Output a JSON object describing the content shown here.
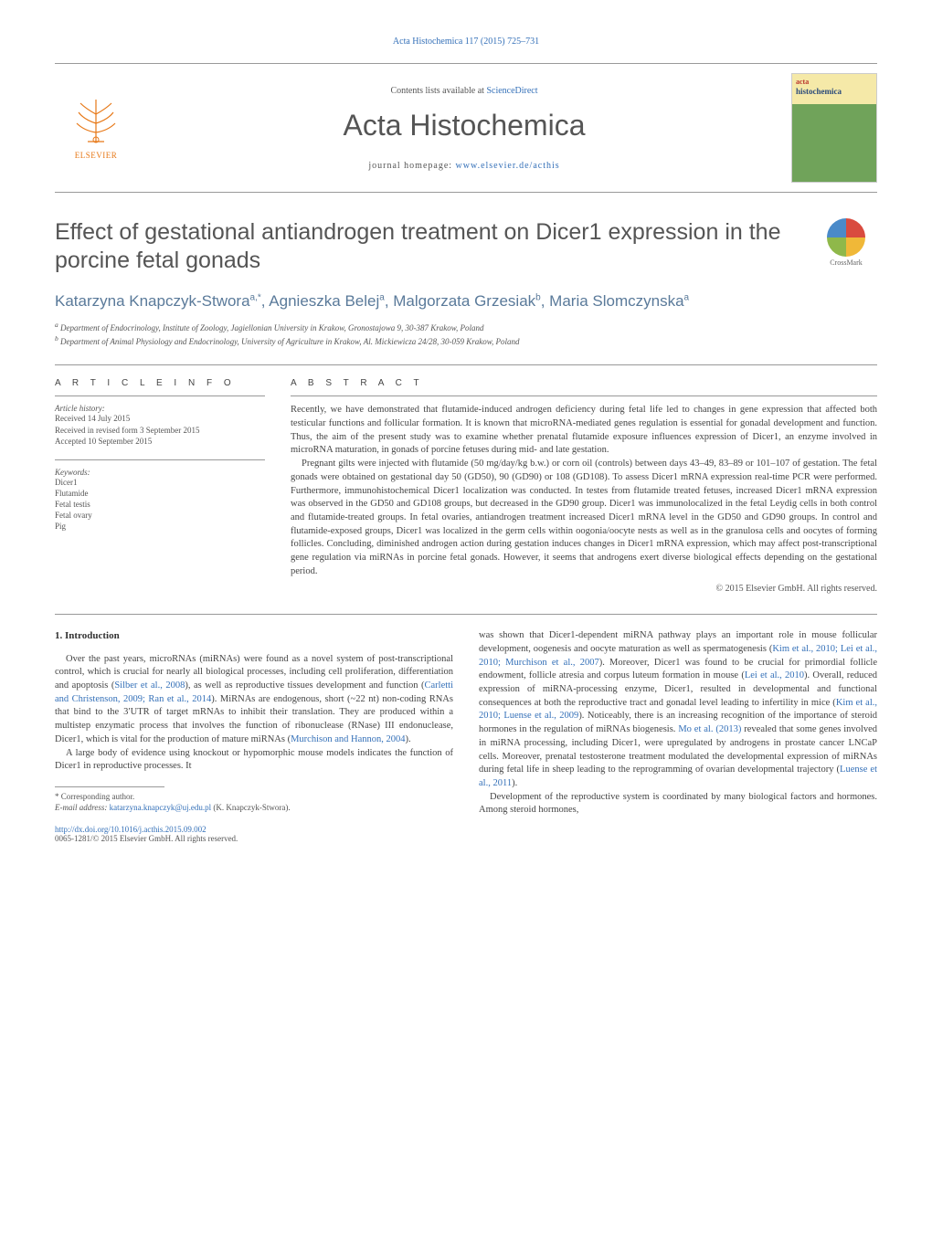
{
  "header_citation": "Acta Histochemica 117 (2015) 725–731",
  "masthead": {
    "elsevier_label": "ELSEVIER",
    "contents_prefix": "Contents lists available at ",
    "contents_link": "ScienceDirect",
    "journal_name": "Acta Histochemica",
    "homepage_prefix": "journal homepage: ",
    "homepage_url": "www.elsevier.de/acthis",
    "cover_small": "acta",
    "cover_big": "histochemica"
  },
  "title": "Effect of gestational antiandrogen treatment on Dicer1 expression in the porcine fetal gonads",
  "crossmark_label": "CrossMark",
  "authors_html": "Katarzyna Knapczyk-Stwora|a,*|, Agnieszka Belej|a|, Malgorzata Grzesiak|b|, Maria Slomczynska|a|",
  "affiliations": {
    "a": "Department of Endocrinology, Institute of Zoology, Jagiellonian University in Krakow, Gronostajowa 9, 30-387 Krakow, Poland",
    "b": "Department of Animal Physiology and Endocrinology, University of Agriculture in Krakow, Al. Mickiewicza 24/28, 30-059 Krakow, Poland"
  },
  "article_info": {
    "heading": "a r t i c l e   i n f o",
    "history_head": "Article history:",
    "received": "Received 14 July 2015",
    "revised": "Received in revised form 3 September 2015",
    "accepted": "Accepted 10 September 2015",
    "keywords_head": "Keywords:",
    "keywords": [
      "Dicer1",
      "Flutamide",
      "Fetal testis",
      "Fetal ovary",
      "Pig"
    ]
  },
  "abstract": {
    "heading": "a b s t r a c t",
    "p1": "Recently, we have demonstrated that flutamide-induced androgen deficiency during fetal life led to changes in gene expression that affected both testicular functions and follicular formation. It is known that microRNA-mediated genes regulation is essential for gonadal development and function. Thus, the aim of the present study was to examine whether prenatal flutamide exposure influences expression of Dicer1, an enzyme involved in microRNA maturation, in gonads of porcine fetuses during mid- and late gestation.",
    "p2": "Pregnant gilts were injected with flutamide (50 mg/day/kg b.w.) or corn oil (controls) between days 43–49, 83–89 or 101–107 of gestation. The fetal gonads were obtained on gestational day 50 (GD50), 90 (GD90) or 108 (GD108). To assess Dicer1 mRNA expression real-time PCR were performed. Furthermore, immunohistochemical Dicer1 localization was conducted. In testes from flutamide treated fetuses, increased Dicer1 mRNA expression was observed in the GD50 and GD108 groups, but decreased in the GD90 group. Dicer1 was immunolocalized in the fetal Leydig cells in both control and flutamide-treated groups. In fetal ovaries, antiandrogen treatment increased Dicer1 mRNA level in the GD50 and GD90 groups. In control and flutamide-exposed groups, Dicer1 was localized in the germ cells within oogonia/oocyte nests as well as in the granulosa cells and oocytes of forming follicles. Concluding, diminished androgen action during gestation induces changes in Dicer1 mRNA expression, which may affect post-transcriptional gene regulation via miRNAs in porcine fetal gonads. However, it seems that androgens exert diverse biological effects depending on the gestational period.",
    "copyright": "© 2015 Elsevier GmbH. All rights reserved."
  },
  "body": {
    "section_head": "1.  Introduction",
    "left_p1_a": "Over the past years, microRNAs (miRNAs) were found as a novel system of post-transcriptional control, which is crucial for nearly all biological processes, including cell proliferation, differentiation and apoptosis (",
    "left_p1_ref1": "Silber et al., 2008",
    "left_p1_b": "), as well as reproductive tissues development and function (",
    "left_p1_ref2": "Carletti and Christenson, 2009; Ran et al., 2014",
    "left_p1_c": "). MiRNAs are endogenous, short (~22 nt) non-coding RNAs that bind to the 3′UTR of target mRNAs to inhibit their translation. They are produced within a multistep enzymatic process that involves the function of ribonuclease (RNase) III endonuclease, Dicer1, which is vital for the production of mature miRNAs (",
    "left_p1_ref3": "Murchison and Hannon, 2004",
    "left_p1_d": ").",
    "left_p2": "A large body of evidence using knockout or hypomorphic mouse models indicates the function of Dicer1 in reproductive processes. It",
    "right_p1_a": "was shown that Dicer1-dependent miRNA pathway plays an important role in mouse follicular development, oogenesis and oocyte maturation as well as spermatogenesis (",
    "right_p1_ref1": "Kim et al., 2010; Lei et al., 2010; Murchison et al., 2007",
    "right_p1_b": "). Moreover, Dicer1 was found to be crucial for primordial follicle endowment, follicle atresia and corpus luteum formation in mouse (",
    "right_p1_ref2": "Lei et al., 2010",
    "right_p1_c": "). Overall, reduced expression of miRNA-processing enzyme, Dicer1, resulted in developmental and functional consequences at both the reproductive tract and gonadal level leading to infertility in mice (",
    "right_p1_ref3": "Kim et al., 2010; Luense et al., 2009",
    "right_p1_d": "). Noticeably, there is an increasing recognition of the importance of steroid hormones in the regulation of miRNAs biogenesis. ",
    "right_p1_ref4": "Mo et al. (2013)",
    "right_p1_e": " revealed that some genes involved in miRNA processing, including Dicer1, were upregulated by androgens in prostate cancer LNCaP cells. Moreover, prenatal testosterone treatment modulated the developmental expression of miRNAs during fetal life in sheep leading to the reprogramming of ovarian developmental trajectory (",
    "right_p1_ref5": "Luense et al., 2011",
    "right_p1_f": ").",
    "right_p2": "Development of the reproductive system is coordinated by many biological factors and hormones. Among steroid hormones,"
  },
  "footnote": {
    "corr": "Corresponding author.",
    "email_label": "E-mail address: ",
    "email": "katarzyna.knapczyk@uj.edu.pl",
    "email_person": " (K. Knapczyk-Stwora)."
  },
  "doi": {
    "url": "http://dx.doi.org/10.1016/j.acthis.2015.09.002",
    "issn": "0065-1281/© 2015 Elsevier GmbH. All rights reserved."
  },
  "colors": {
    "link": "#3470b8",
    "elsevier_orange": "#e77817",
    "text_body": "#444444",
    "text_muted": "#555555",
    "rule": "#999999"
  }
}
